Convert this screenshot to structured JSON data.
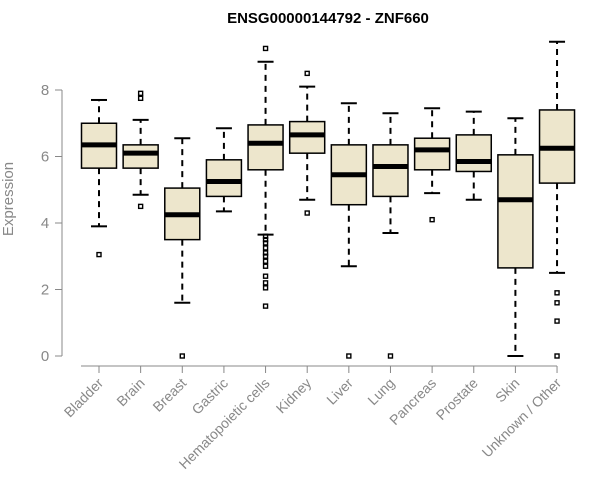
{
  "chart_data": {
    "type": "box",
    "title": "ENSG00000144792 - ZNF660",
    "ylabel": "Expression",
    "xlabel": "",
    "ylim": [
      0,
      9.5
    ],
    "yticks": [
      0,
      2,
      4,
      6,
      8
    ],
    "box_fill": "#ede6cc",
    "stroke_color": "#000000",
    "categories": [
      "Bladder",
      "Brain",
      "Breast",
      "Gastric",
      "Hematopoietic cells",
      "Kidney",
      "Liver",
      "Lung",
      "Pancreas",
      "Prostate",
      "Skin",
      "Unknown / Other"
    ],
    "boxes": [
      {
        "name": "Bladder",
        "min": 3.9,
        "q1": 5.65,
        "median": 6.35,
        "q3": 7.0,
        "max": 7.7,
        "outliers": [
          3.05
        ]
      },
      {
        "name": "Brain",
        "min": 4.85,
        "q1": 5.65,
        "median": 6.1,
        "q3": 6.35,
        "max": 7.1,
        "outliers": [
          7.75,
          7.9,
          4.5
        ]
      },
      {
        "name": "Breast",
        "min": 1.6,
        "q1": 3.5,
        "median": 4.25,
        "q3": 5.05,
        "max": 6.55,
        "outliers": [
          0.0
        ]
      },
      {
        "name": "Gastric",
        "min": 4.35,
        "q1": 4.8,
        "median": 5.25,
        "q3": 5.9,
        "max": 6.85,
        "outliers": []
      },
      {
        "name": "Hematopoietic cells",
        "min": 3.65,
        "q1": 5.6,
        "median": 6.4,
        "q3": 6.95,
        "max": 8.85,
        "outliers": [
          9.25,
          3.6,
          3.5,
          3.4,
          3.25,
          3.1,
          3.0,
          2.85,
          2.7,
          2.4,
          2.2,
          2.05,
          1.5
        ]
      },
      {
        "name": "Kidney",
        "min": 4.7,
        "q1": 6.1,
        "median": 6.65,
        "q3": 7.05,
        "max": 8.1,
        "outliers": [
          8.5,
          4.3
        ]
      },
      {
        "name": "Liver",
        "min": 2.7,
        "q1": 4.55,
        "median": 5.45,
        "q3": 6.35,
        "max": 7.6,
        "outliers": [
          0.0
        ]
      },
      {
        "name": "Lung",
        "min": 3.7,
        "q1": 4.8,
        "median": 5.7,
        "q3": 6.35,
        "max": 7.3,
        "outliers": [
          0.0
        ]
      },
      {
        "name": "Pancreas",
        "min": 4.9,
        "q1": 5.6,
        "median": 6.2,
        "q3": 6.55,
        "max": 7.45,
        "outliers": [
          4.1
        ]
      },
      {
        "name": "Prostate",
        "min": 4.7,
        "q1": 5.55,
        "median": 5.85,
        "q3": 6.65,
        "max": 7.35,
        "outliers": []
      },
      {
        "name": "Skin",
        "min": 0.0,
        "q1": 2.65,
        "median": 4.7,
        "q3": 6.05,
        "max": 7.15,
        "outliers": []
      },
      {
        "name": "Unknown / Other",
        "min": 2.5,
        "q1": 5.2,
        "median": 6.25,
        "q3": 7.4,
        "max": 9.45,
        "outliers": [
          1.9,
          1.6,
          1.05,
          0.0
        ]
      }
    ]
  }
}
